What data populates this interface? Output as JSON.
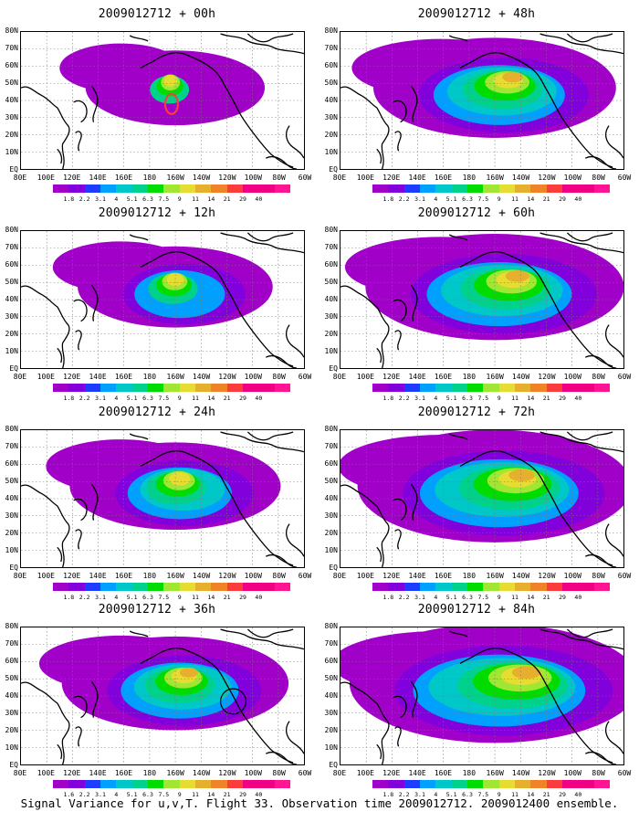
{
  "caption": "Signal Variance for u,v,T. Flight 33. Observation time 2009012712. 2009012400 ensemble.",
  "panels": [
    {
      "title": "2009012712 + 00h"
    },
    {
      "title": "2009012712 + 48h"
    },
    {
      "title": "2009012712 + 12h"
    },
    {
      "title": "2009012712 + 60h"
    },
    {
      "title": "2009012712 + 24h"
    },
    {
      "title": "2009012712 + 72h"
    },
    {
      "title": "2009012712 + 36h"
    },
    {
      "title": "2009012712 + 84h"
    }
  ],
  "lat_labels": [
    "80N",
    "70N",
    "60N",
    "50N",
    "40N",
    "30N",
    "20N",
    "10N",
    "EQ"
  ],
  "lon_labels": [
    "80E",
    "100E",
    "120E",
    "140E",
    "160E",
    "180",
    "160W",
    "140W",
    "120W",
    "100W",
    "80W",
    "60W"
  ],
  "colorbar": {
    "labels": [
      "1.8",
      "2.2",
      "3.1",
      "4",
      "5.1",
      "6.3",
      "7.5",
      "9",
      "11",
      "14",
      "21",
      "29",
      "40"
    ],
    "labels_36h": [
      "1.6",
      "2.2",
      "3.1",
      "4",
      "5.1",
      "6.3",
      "7.5",
      "9",
      "11",
      "14",
      "21",
      "29",
      "40"
    ],
    "colors": [
      "#a000c8",
      "#8200dc",
      "#1e3cff",
      "#00a0ff",
      "#00c8c8",
      "#00d28c",
      "#00dc00",
      "#a0e632",
      "#e6dc32",
      "#e6af2d",
      "#f08228",
      "#fa3c3c",
      "#f00082"
    ]
  }
}
